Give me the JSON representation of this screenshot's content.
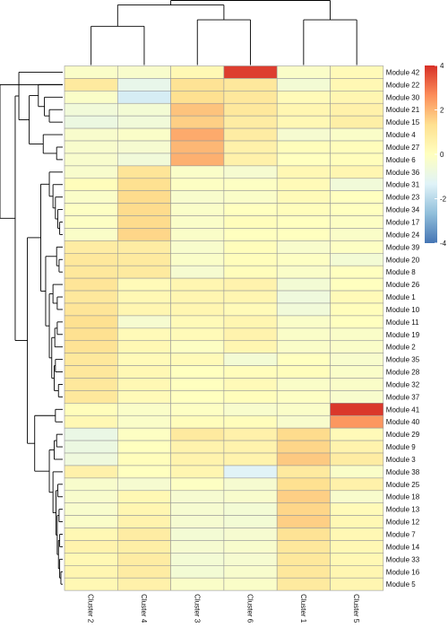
{
  "chart_data": {
    "type": "heatmap",
    "title": "",
    "xlabel": "",
    "ylabel": "",
    "columns": [
      "Cluster 2",
      "Cluster 4",
      "Cluster 3",
      "Cluster 6",
      "Cluster 1",
      "Cluster 5"
    ],
    "rows": [
      "Module 42",
      "Module 22",
      "Module 30",
      "Module 21",
      "Module 15",
      "Module 4",
      "Module 27",
      "Module 6",
      "Module 36",
      "Module 31",
      "Module 23",
      "Module 34",
      "Module 17",
      "Module 24",
      "Module 39",
      "Module 20",
      "Module 8",
      "Module 26",
      "Module 1",
      "Module 10",
      "Module 11",
      "Module 19",
      "Module 2",
      "Module 35",
      "Module 28",
      "Module 32",
      "Module 37",
      "Module 41",
      "Module 40",
      "Module 29",
      "Module 9",
      "Module 3",
      "Module 38",
      "Module 25",
      "Module 18",
      "Module 13",
      "Module 12",
      "Module 7",
      "Module 14",
      "Module 33",
      "Module 16",
      "Module 5"
    ],
    "values": [
      [
        -0.2,
        -0.3,
        0.3,
        3.8,
        -0.2,
        0.2
      ],
      [
        0.9,
        -1.0,
        1.2,
        1.0,
        -0.5,
        0.3
      ],
      [
        -0.2,
        -1.5,
        1.3,
        1.0,
        0.2,
        0.4
      ],
      [
        -0.6,
        -0.5,
        1.8,
        1.0,
        0.4,
        0.6
      ],
      [
        -0.8,
        -0.6,
        1.6,
        0.8,
        0.3,
        0.7
      ],
      [
        -0.3,
        -0.2,
        2.2,
        0.8,
        -0.4,
        -0.2
      ],
      [
        -0.3,
        -0.4,
        2.0,
        0.6,
        0.1,
        0.1
      ],
      [
        -0.3,
        -0.6,
        2.1,
        0.6,
        0.0,
        0.1
      ],
      [
        -0.3,
        1.1,
        -0.2,
        -0.4,
        0.3,
        0.4
      ],
      [
        0.1,
        1.3,
        -0.1,
        -0.1,
        0.2,
        -0.6
      ],
      [
        -0.2,
        1.4,
        -0.3,
        -0.2,
        0.2,
        0.0
      ],
      [
        -0.1,
        1.4,
        -0.2,
        0.0,
        0.1,
        0.0
      ],
      [
        -0.1,
        1.4,
        -0.2,
        0.1,
        0.0,
        -0.1
      ],
      [
        -0.2,
        1.5,
        -0.2,
        0.0,
        0.0,
        -0.2
      ],
      [
        0.8,
        0.8,
        -0.3,
        0.1,
        -0.3,
        -0.1
      ],
      [
        1.0,
        0.9,
        -0.2,
        0.1,
        -0.1,
        -0.5
      ],
      [
        1.0,
        0.9,
        -0.4,
        0.1,
        -0.2,
        0.0
      ],
      [
        1.1,
        0.2,
        0.4,
        0.5,
        -0.5,
        0.0
      ],
      [
        1.0,
        0.3,
        0.4,
        0.4,
        -0.7,
        0.2
      ],
      [
        1.1,
        0.4,
        0.4,
        0.2,
        -0.6,
        0.1
      ],
      [
        1.3,
        -0.4,
        0.2,
        0.4,
        -0.2,
        0.0
      ],
      [
        1.3,
        0.2,
        0.2,
        0.5,
        -0.2,
        -0.2
      ],
      [
        1.2,
        0.3,
        -0.1,
        0.4,
        -0.2,
        -0.2
      ],
      [
        1.0,
        0.2,
        0.2,
        -0.5,
        0.0,
        -0.3
      ],
      [
        1.0,
        0.3,
        0.0,
        0.1,
        0.1,
        -0.2
      ],
      [
        1.0,
        0.3,
        0.0,
        0.2,
        -0.2,
        -0.2
      ],
      [
        1.0,
        0.2,
        0.0,
        0.1,
        -0.1,
        -0.3
      ],
      [
        0.1,
        -0.2,
        -0.1,
        -0.3,
        -0.2,
        3.9
      ],
      [
        0.3,
        -0.2,
        0.1,
        0.1,
        -0.3,
        2.5
      ],
      [
        -0.9,
        -0.1,
        0.9,
        0.6,
        1.4,
        0.2
      ],
      [
        -0.8,
        0.0,
        0.5,
        0.5,
        1.5,
        0.5
      ],
      [
        -0.7,
        0.1,
        0.5,
        0.5,
        1.7,
        0.8
      ],
      [
        0.6,
        0.0,
        0.4,
        -1.3,
        0.9,
        -0.2
      ],
      [
        -0.3,
        -0.4,
        -0.1,
        -0.4,
        1.3,
        0.6
      ],
      [
        -0.3,
        0.3,
        -0.4,
        -0.3,
        1.6,
        -0.3
      ],
      [
        -0.3,
        0.4,
        -0.4,
        -0.5,
        1.5,
        0.2
      ],
      [
        -0.2,
        0.5,
        -0.4,
        -0.5,
        1.6,
        0.3
      ],
      [
        0.3,
        0.8,
        -0.5,
        -0.4,
        1.2,
        0.3
      ],
      [
        0.5,
        0.7,
        -0.4,
        -0.3,
        1.0,
        0.3
      ],
      [
        0.3,
        0.8,
        -0.5,
        -0.4,
        1.0,
        0.3
      ],
      [
        0.4,
        0.8,
        -0.5,
        -0.3,
        1.0,
        0.4
      ],
      [
        0.3,
        0.6,
        -0.2,
        -0.2,
        0.9,
        0.4
      ]
    ],
    "color_scale": {
      "min": -4,
      "max": 4,
      "stops": [
        "#4575b4",
        "#91bfdb",
        "#e0f3f8",
        "#ffffbf",
        "#fee090",
        "#fc8d59",
        "#d73027"
      ],
      "ticks": [
        4,
        2,
        0,
        -2,
        -4
      ]
    },
    "row_dendrogram_side": "left",
    "column_dendrogram_side": "top",
    "legend_placement": "right"
  }
}
